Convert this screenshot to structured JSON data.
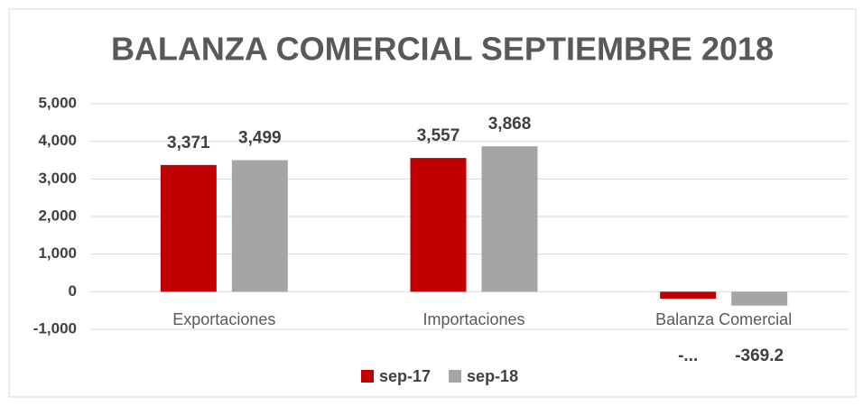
{
  "chart_data": {
    "type": "bar",
    "title": "BALANZA COMERCIAL SEPTIEMBRE 2018",
    "categories": [
      "Exportaciones",
      "Importaciones",
      "Balanza Comercial"
    ],
    "series": [
      {
        "name": "sep-17",
        "color": "#c00000",
        "values": [
          3371,
          3557,
          -186
        ],
        "value_labels": [
          "3,371",
          "3,557",
          "-..."
        ]
      },
      {
        "name": "sep-18",
        "color": "#a5a5a5",
        "values": [
          3499,
          3868,
          -369.2
        ],
        "value_labels": [
          "3,499",
          "3,868",
          "-369.2"
        ]
      }
    ],
    "ylim": [
      -1000,
      5000
    ],
    "yticks": [
      {
        "value": -1000,
        "label": "-1,000"
      },
      0,
      {
        "value": 1000,
        "label": "1,000"
      },
      {
        "value": 2000,
        "label": "2,000"
      },
      {
        "value": 3000,
        "label": "3,000"
      },
      {
        "value": 4000,
        "label": "4,000"
      },
      {
        "value": 5000,
        "label": "5,000"
      }
    ],
    "grid": true,
    "legend": "bottom"
  }
}
